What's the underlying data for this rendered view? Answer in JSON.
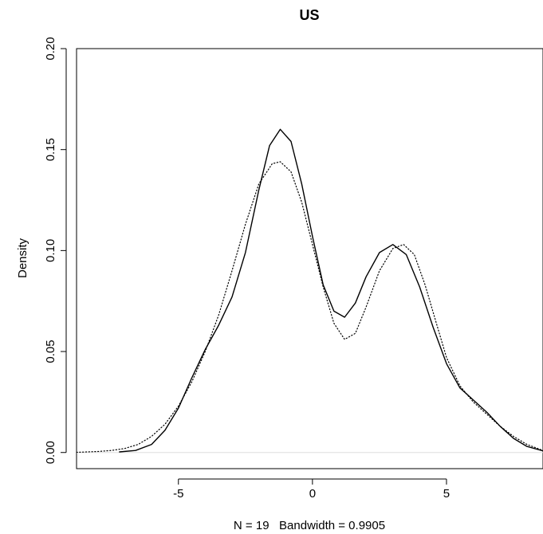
{
  "chart_data": {
    "type": "line",
    "title": "US",
    "xlabel": "N = 19   Bandwidth = 0.9905",
    "ylabel": "Density",
    "xlim": [
      -8.8,
      8.6
    ],
    "ylim": [
      -0.008,
      0.2
    ],
    "x_ticks": [
      -5,
      0,
      5
    ],
    "x_tick_labels": [
      "-5",
      "0",
      "5"
    ],
    "y_ticks": [
      0.0,
      0.05,
      0.1,
      0.15,
      0.2
    ],
    "y_tick_labels": [
      "0.00",
      "0.05",
      "0.10",
      "0.15",
      "0.20"
    ],
    "grid": false,
    "legend": "none",
    "baseline": 0,
    "series": [
      {
        "style": "solid",
        "color": "#000000",
        "x": [
          -7.2,
          -6.6,
          -6.0,
          -5.5,
          -5.0,
          -4.5,
          -4.0,
          -3.5,
          -3.0,
          -2.5,
          -2.0,
          -1.6,
          -1.2,
          -0.8,
          -0.4,
          0.0,
          0.4,
          0.8,
          1.2,
          1.6,
          2.0,
          2.5,
          3.0,
          3.5,
          4.0,
          4.5,
          5.0,
          5.5,
          6.0,
          6.5,
          7.0,
          7.5,
          8.0,
          8.6
        ],
        "y": [
          0.0003,
          0.001,
          0.004,
          0.011,
          0.022,
          0.037,
          0.051,
          0.063,
          0.077,
          0.099,
          0.13,
          0.152,
          0.16,
          0.154,
          0.133,
          0.107,
          0.083,
          0.07,
          0.067,
          0.074,
          0.087,
          0.099,
          0.103,
          0.098,
          0.082,
          0.062,
          0.044,
          0.032,
          0.026,
          0.02,
          0.013,
          0.007,
          0.003,
          0.0008
        ]
      },
      {
        "style": "dotted",
        "color": "#000000",
        "x": [
          -8.8,
          -8.0,
          -7.5,
          -7.0,
          -6.5,
          -6.0,
          -5.5,
          -5.0,
          -4.5,
          -4.0,
          -3.5,
          -3.0,
          -2.5,
          -2.0,
          -1.5,
          -1.2,
          -0.8,
          -0.4,
          0.0,
          0.4,
          0.8,
          1.2,
          1.6,
          2.0,
          2.5,
          3.0,
          3.4,
          3.8,
          4.2,
          4.6,
          5.0,
          5.5,
          6.0,
          6.5,
          7.0,
          7.5,
          8.0,
          8.6
        ],
        "y": [
          0.0001,
          0.0005,
          0.001,
          0.002,
          0.004,
          0.008,
          0.014,
          0.023,
          0.035,
          0.05,
          0.068,
          0.09,
          0.113,
          0.133,
          0.143,
          0.144,
          0.139,
          0.124,
          0.103,
          0.082,
          0.064,
          0.056,
          0.059,
          0.072,
          0.09,
          0.101,
          0.103,
          0.098,
          0.083,
          0.065,
          0.047,
          0.033,
          0.025,
          0.019,
          0.013,
          0.008,
          0.004,
          0.001
        ]
      }
    ]
  }
}
